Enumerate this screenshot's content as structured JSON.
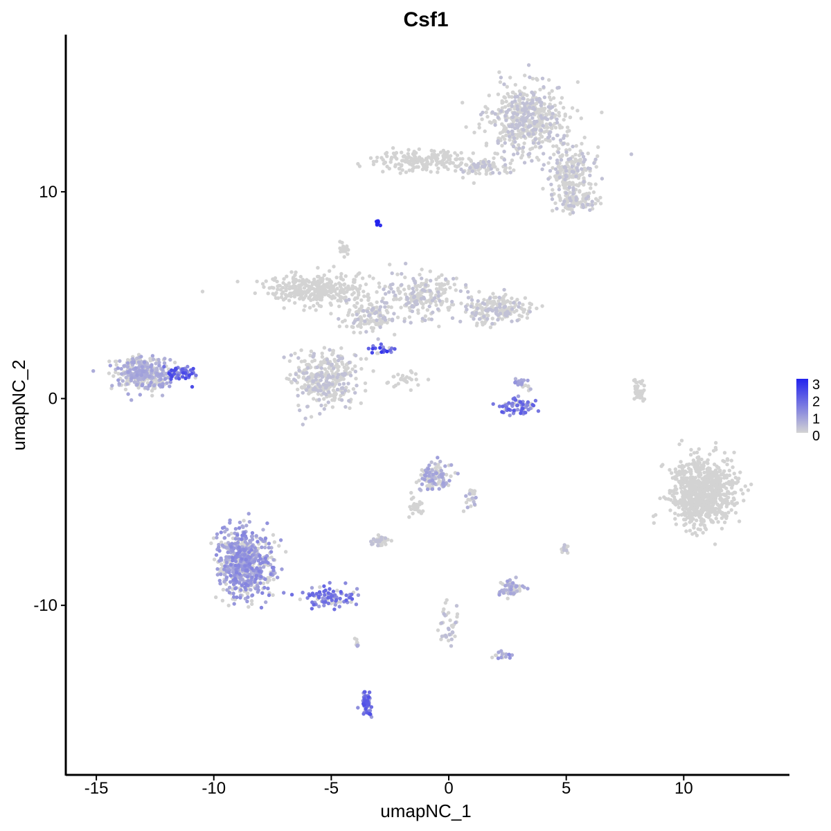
{
  "chart_data": {
    "type": "scatter",
    "title": "Csf1",
    "xlabel": "umapNC_1",
    "ylabel": "umapNC_2",
    "xlim": [
      -16.3,
      14.5
    ],
    "ylim": [
      -18.2,
      17.6
    ],
    "x_ticks": [
      -15,
      -10,
      -5,
      0,
      5,
      10
    ],
    "x_tick_labels": [
      "-15",
      "-10",
      "-5",
      "0",
      "5",
      "10"
    ],
    "y_ticks": [
      -10,
      0,
      10
    ],
    "y_tick_labels": [
      "-10",
      "0",
      "10"
    ],
    "grid": false,
    "legend": {
      "position": "right",
      "labels": [
        "3",
        "2",
        "1",
        "0"
      ],
      "values": [
        3,
        2,
        1,
        0
      ]
    },
    "color_scale": {
      "low": "#d3d3d3",
      "high": "#2222ee",
      "min": 0,
      "max": 3
    },
    "clusters": [
      {
        "center": [
          3.3,
          13.5
        ],
        "spread": [
          1.5,
          1.6
        ],
        "n": 520,
        "expr": 0.03
      },
      {
        "center": [
          -1.2,
          11.5
        ],
        "spread": [
          1.8,
          0.45
        ],
        "n": 170,
        "expr": 0.0
      },
      {
        "center": [
          1.5,
          11.2
        ],
        "spread": [
          1.3,
          0.4
        ],
        "n": 90,
        "expr": 0.02
      },
      {
        "center": [
          5.2,
          11.0
        ],
        "spread": [
          0.9,
          1.1
        ],
        "n": 200,
        "expr": 0.1
      },
      {
        "center": [
          5.4,
          9.5
        ],
        "spread": [
          0.9,
          0.45
        ],
        "n": 90,
        "expr": 0.06
      },
      {
        "center": [
          -3.0,
          8.5
        ],
        "spread": [
          0.12,
          0.12
        ],
        "n": 10,
        "expr": 2.9
      },
      {
        "center": [
          -5.6,
          5.3
        ],
        "spread": [
          2.0,
          0.7
        ],
        "n": 320,
        "expr": 0.0
      },
      {
        "center": [
          -4.5,
          7.2
        ],
        "spread": [
          0.2,
          0.3
        ],
        "n": 20,
        "expr": 0.0
      },
      {
        "center": [
          -3.5,
          4.0
        ],
        "spread": [
          1.0,
          0.6
        ],
        "n": 120,
        "expr": 0.1
      },
      {
        "center": [
          -1.2,
          5.0
        ],
        "spread": [
          1.5,
          1.0
        ],
        "n": 220,
        "expr": 0.03
      },
      {
        "center": [
          2.0,
          4.3
        ],
        "spread": [
          1.4,
          0.6
        ],
        "n": 180,
        "expr": 0.05
      },
      {
        "center": [
          -5.3,
          1.0
        ],
        "spread": [
          1.2,
          1.2
        ],
        "n": 340,
        "expr": 0.04
      },
      {
        "center": [
          -2.8,
          2.4
        ],
        "spread": [
          0.45,
          0.2
        ],
        "n": 22,
        "expr": 1.8
      },
      {
        "center": [
          -2.0,
          0.9
        ],
        "spread": [
          0.9,
          0.45
        ],
        "n": 28,
        "expr": 0.0
      },
      {
        "center": [
          -13.0,
          1.2
        ],
        "spread": [
          1.1,
          0.7
        ],
        "n": 360,
        "expr": 0.6
      },
      {
        "center": [
          -11.5,
          1.2
        ],
        "spread": [
          0.6,
          0.3
        ],
        "n": 60,
        "expr": 1.6
      },
      {
        "center": [
          3.0,
          -0.4
        ],
        "spread": [
          0.85,
          0.35
        ],
        "n": 65,
        "expr": 1.4
      },
      {
        "center": [
          3.1,
          0.7
        ],
        "spread": [
          0.35,
          0.4
        ],
        "n": 25,
        "expr": 0.8
      },
      {
        "center": [
          8.1,
          0.4
        ],
        "spread": [
          0.2,
          0.6
        ],
        "n": 40,
        "expr": 0.0
      },
      {
        "center": [
          10.8,
          -4.5
        ],
        "spread": [
          1.2,
          1.45
        ],
        "n": 820,
        "expr": 0.0
      },
      {
        "center": [
          -0.6,
          -3.8
        ],
        "spread": [
          0.55,
          0.65
        ],
        "n": 120,
        "expr": 0.6
      },
      {
        "center": [
          1.0,
          -4.8
        ],
        "spread": [
          0.3,
          0.5
        ],
        "n": 24,
        "expr": 0.5
      },
      {
        "center": [
          -1.4,
          -5.3
        ],
        "spread": [
          0.3,
          0.5
        ],
        "n": 30,
        "expr": 0.0
      },
      {
        "center": [
          -8.7,
          -8.0
        ],
        "spread": [
          1.05,
          1.45
        ],
        "n": 620,
        "expr": 0.9
      },
      {
        "center": [
          -5.0,
          -9.6
        ],
        "spread": [
          1.1,
          0.45
        ],
        "n": 85,
        "expr": 1.3
      },
      {
        "center": [
          -2.9,
          -6.9
        ],
        "spread": [
          0.4,
          0.2
        ],
        "n": 40,
        "expr": 0.1
      },
      {
        "center": [
          2.6,
          -9.2
        ],
        "spread": [
          0.45,
          0.4
        ],
        "n": 60,
        "expr": 0.6
      },
      {
        "center": [
          5.0,
          -7.3
        ],
        "spread": [
          0.15,
          0.2
        ],
        "n": 12,
        "expr": 0.2
      },
      {
        "center": [
          0.0,
          -10.9
        ],
        "spread": [
          0.4,
          1.0
        ],
        "n": 40,
        "expr": 0.3
      },
      {
        "center": [
          2.3,
          -12.4
        ],
        "spread": [
          0.4,
          0.2
        ],
        "n": 16,
        "expr": 0.8
      },
      {
        "center": [
          -3.5,
          -14.7
        ],
        "spread": [
          0.2,
          0.5
        ],
        "n": 60,
        "expr": 1.5
      },
      {
        "center": [
          -3.9,
          -11.8
        ],
        "spread": [
          0.1,
          0.25
        ],
        "n": 8,
        "expr": 0.5
      }
    ]
  }
}
